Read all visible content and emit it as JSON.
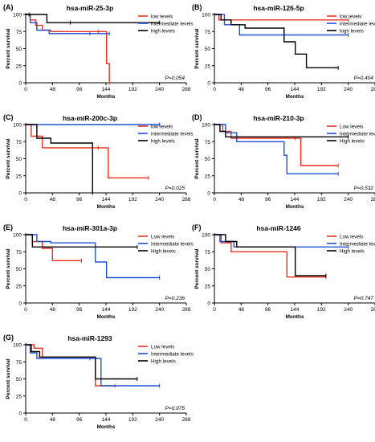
{
  "figure": {
    "panels": [
      {
        "label": "(A)",
        "title": "hsa-miR-25-3p",
        "pvalue": "P=0.054"
      },
      {
        "label": "(B)",
        "title": "hsa-miR-126-5p",
        "pvalue": "P=0.404"
      },
      {
        "label": "(C)",
        "title": "hsa-miR-200c-3p",
        "pvalue": "P=0.025"
      },
      {
        "label": "(D)",
        "title": "hsa-miR-210-3p",
        "pvalue": "P=0.532"
      },
      {
        "label": "(E)",
        "title": "hsa-miR-301a-3p",
        "pvalue": "P=0.236"
      },
      {
        "label": "(F)",
        "title": "hsa-miR-1246",
        "pvalue": "P=0.747"
      },
      {
        "label": "(G)",
        "title": "hsa-miR-1293",
        "pvalue": "P=0.975"
      }
    ]
  },
  "chart_data": [
    {
      "type": "line",
      "step": true,
      "title": "hsa-miR-25-3p",
      "xlabel": "Months",
      "ylabel": "Percent survival",
      "xlim": [
        0,
        288
      ],
      "ylim": [
        0,
        100
      ],
      "xticks": [
        0,
        48,
        96,
        144,
        192,
        240,
        288
      ],
      "yticks": [
        0,
        25,
        50,
        75,
        100
      ],
      "legend": "top-right",
      "pvalue": "P=0.054",
      "series": [
        {
          "name": "low levels",
          "color": "#e8321e",
          "x": [
            0,
            8,
            18,
            30,
            45,
            130,
            145,
            150
          ],
          "y": [
            100,
            92,
            84,
            77,
            75,
            75,
            28,
            0
          ]
        },
        {
          "name": "intermediate levels",
          "color": "#2150d8",
          "x": [
            0,
            8,
            20,
            42,
            115,
            150
          ],
          "y": [
            100,
            88,
            77,
            72,
            72,
            72
          ]
        },
        {
          "name": "high levels",
          "color": "#000000",
          "x": [
            0,
            6,
            38,
            80,
            240
          ],
          "y": [
            100,
            100,
            88,
            88,
            88
          ]
        }
      ]
    },
    {
      "type": "line",
      "step": true,
      "title": "hsa-miR-126-5p",
      "xlabel": "Months",
      "ylabel": "Percent survival",
      "xlim": [
        0,
        288
      ],
      "ylim": [
        0,
        100
      ],
      "xticks": [
        0,
        48,
        96,
        144,
        192,
        240,
        288
      ],
      "yticks": [
        0,
        25,
        50,
        75,
        100
      ],
      "legend": "top-right",
      "pvalue": "P=0.404",
      "series": [
        {
          "name": "low levels",
          "color": "#e8321e",
          "x": [
            0,
            8,
            240
          ],
          "y": [
            100,
            92,
            92
          ]
        },
        {
          "name": "intermediate levels",
          "color": "#2150d8",
          "x": [
            0,
            18,
            45,
            240
          ],
          "y": [
            100,
            85,
            70,
            70
          ]
        },
        {
          "name": "high levels",
          "color": "#000000",
          "x": [
            0,
            12,
            30,
            55,
            125,
            145,
            165,
            222
          ],
          "y": [
            100,
            92,
            85,
            80,
            60,
            42,
            22,
            22
          ]
        }
      ]
    },
    {
      "type": "line",
      "step": true,
      "title": "hsa-miR-200c-3p",
      "xlabel": "Months",
      "ylabel": "Percent survival",
      "xlim": [
        0,
        288
      ],
      "ylim": [
        0,
        100
      ],
      "xticks": [
        0,
        48,
        96,
        144,
        192,
        240,
        288
      ],
      "yticks": [
        0,
        25,
        50,
        75,
        100
      ],
      "legend": "top-right",
      "pvalue": "P=0.025",
      "series": [
        {
          "name": "low levels",
          "color": "#e8321e",
          "x": [
            0,
            10,
            30,
            130,
            148,
            220
          ],
          "y": [
            100,
            83,
            66,
            66,
            22,
            22
          ]
        },
        {
          "name": "intermediate levels",
          "color": "#2150d8",
          "x": [
            0,
            240
          ],
          "y": [
            100,
            100
          ]
        },
        {
          "name": "high levels",
          "color": "#000000",
          "x": [
            0,
            20,
            45,
            120
          ],
          "y": [
            100,
            80,
            73,
            0
          ]
        }
      ]
    },
    {
      "type": "line",
      "step": true,
      "title": "hsa-miR-210-3p",
      "xlabel": "Months",
      "ylabel": "Percent survival",
      "xlim": [
        0,
        288
      ],
      "ylim": [
        0,
        100
      ],
      "xticks": [
        0,
        48,
        96,
        144,
        192,
        240,
        288
      ],
      "yticks": [
        0,
        25,
        50,
        75,
        100
      ],
      "legend": "top-right",
      "pvalue": "P=0.532",
      "series": [
        {
          "name": "Low levels",
          "color": "#e8321e",
          "x": [
            0,
            15,
            30,
            145,
            155,
            222
          ],
          "y": [
            100,
            90,
            80,
            80,
            40,
            40
          ]
        },
        {
          "name": "Intermediate levels",
          "color": "#2150d8",
          "x": [
            0,
            20,
            40,
            125,
            130,
            222
          ],
          "y": [
            100,
            88,
            75,
            55,
            28,
            28
          ]
        },
        {
          "name": "High levels",
          "color": "#000000",
          "x": [
            0,
            10,
            20,
            240
          ],
          "y": [
            100,
            90,
            82,
            82
          ]
        }
      ]
    },
    {
      "type": "line",
      "step": true,
      "title": "hsa-miR-301a-3p",
      "xlabel": "Months",
      "ylabel": "Percent survival",
      "xlim": [
        0,
        288
      ],
      "ylim": [
        0,
        100
      ],
      "xticks": [
        0,
        48,
        96,
        144,
        192,
        240,
        288
      ],
      "yticks": [
        0,
        25,
        50,
        75,
        100
      ],
      "legend": "top-right",
      "pvalue": "P=0.236",
      "series": [
        {
          "name": "Low levels",
          "color": "#e8321e",
          "x": [
            0,
            12,
            30,
            48,
            100
          ],
          "y": [
            100,
            90,
            80,
            62,
            62
          ]
        },
        {
          "name": "Intermediate levels",
          "color": "#2150d8",
          "x": [
            0,
            20,
            45,
            125,
            145,
            240
          ],
          "y": [
            100,
            90,
            88,
            60,
            37,
            37
          ]
        },
        {
          "name": "High levels",
          "color": "#000000",
          "x": [
            0,
            12,
            200
          ],
          "y": [
            100,
            82,
            82
          ]
        }
      ]
    },
    {
      "type": "line",
      "step": true,
      "title": "hsa-miR-1246",
      "xlabel": "Months",
      "ylabel": "Percent survival",
      "xlim": [
        0,
        288
      ],
      "ylim": [
        0,
        100
      ],
      "xticks": [
        0,
        48,
        96,
        144,
        192,
        240,
        288
      ],
      "yticks": [
        0,
        25,
        50,
        75,
        100
      ],
      "legend": "top-right",
      "pvalue": "P=0.747",
      "series": [
        {
          "name": "Low levels",
          "color": "#e8321e",
          "x": [
            0,
            12,
            30,
            130,
            200
          ],
          "y": [
            100,
            88,
            75,
            38,
            38
          ]
        },
        {
          "name": "Intermediate levels",
          "color": "#2150d8",
          "x": [
            0,
            10,
            35,
            240
          ],
          "y": [
            100,
            90,
            82,
            82
          ]
        },
        {
          "name": "High levels",
          "color": "#000000",
          "x": [
            0,
            20,
            40,
            145,
            200
          ],
          "y": [
            100,
            90,
            82,
            40,
            40
          ]
        }
      ]
    },
    {
      "type": "line",
      "step": true,
      "title": "hsa-miR-1293",
      "xlabel": "Months",
      "ylabel": "Percent survival",
      "xlim": [
        0,
        288
      ],
      "ylim": [
        0,
        100
      ],
      "xticks": [
        0,
        48,
        96,
        144,
        192,
        240,
        288
      ],
      "yticks": [
        0,
        25,
        50,
        75,
        100
      ],
      "legend": "top-right",
      "pvalue": "P=0.975",
      "series": [
        {
          "name": "Low levels",
          "color": "#e8321e",
          "x": [
            0,
            15,
            30,
            125,
            160
          ],
          "y": [
            100,
            95,
            82,
            40,
            40
          ]
        },
        {
          "name": "Intermediate levels",
          "color": "#2150d8",
          "x": [
            0,
            8,
            20,
            115,
            135,
            240
          ],
          "y": [
            100,
            88,
            80,
            80,
            40,
            40
          ]
        },
        {
          "name": "High levels",
          "color": "#000000",
          "x": [
            0,
            10,
            25,
            125,
            200
          ],
          "y": [
            100,
            90,
            82,
            50,
            50
          ]
        }
      ]
    }
  ]
}
